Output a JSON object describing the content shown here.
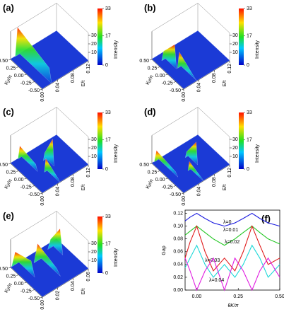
{
  "panels": [
    {
      "label": "(a)",
      "ky_label": "Ky/π",
      "e_label": "E/t",
      "z_label": "Intensity",
      "ky_ticks": [
        {
          "value": 0.5,
          "label": "0.50"
        },
        {
          "value": 0.25,
          "label": "0.25"
        },
        {
          "value": 0,
          "label": "0.00"
        },
        {
          "value": -0.25,
          "label": "-0.25"
        },
        {
          "value": -0.5,
          "label": "-0.50"
        }
      ],
      "e_ticks": [
        {
          "value": 0,
          "label": "0.00"
        },
        {
          "value": 0.04,
          "label": "0.04"
        },
        {
          "value": 0.08,
          "label": "0.08"
        },
        {
          "value": 0.12,
          "label": "0.12"
        }
      ],
      "z_ticks": [
        10,
        20,
        30
      ],
      "colorbar_ticks": [
        0,
        17,
        33
      ]
    },
    {
      "label": "(b)",
      "ky_label": "Ky/π",
      "e_label": "E/t",
      "z_label": "Intensity",
      "ky_ticks": [
        {
          "value": 0.5,
          "label": "0.50"
        },
        {
          "value": 0.25,
          "label": "0.25"
        },
        {
          "value": 0,
          "label": "0.00"
        },
        {
          "value": -0.25,
          "label": "-0.25"
        },
        {
          "value": -0.5,
          "label": "-0.50"
        }
      ],
      "e_ticks": [
        {
          "value": 0,
          "label": "0.00"
        },
        {
          "value": 0.04,
          "label": "0.04"
        },
        {
          "value": 0.08,
          "label": "0.08"
        },
        {
          "value": 0.12,
          "label": "0.12"
        }
      ],
      "z_ticks": [
        10,
        20,
        30
      ],
      "colorbar_ticks": [
        0,
        17,
        33
      ]
    },
    {
      "label": "(c)",
      "ky_label": "Ky/π",
      "e_label": "E/t",
      "z_label": "Intensity",
      "ky_ticks": [
        {
          "value": 0.5,
          "label": "0.50"
        },
        {
          "value": 0.25,
          "label": "0.25"
        },
        {
          "value": 0,
          "label": "0.00"
        },
        {
          "value": -0.25,
          "label": "-0.25"
        },
        {
          "value": -0.5,
          "label": "-0.50"
        }
      ],
      "e_ticks": [
        {
          "value": 0,
          "label": "0.00"
        },
        {
          "value": 0.04,
          "label": "0.04"
        },
        {
          "value": 0.08,
          "label": "0.08"
        },
        {
          "value": 0.12,
          "label": "0.12"
        }
      ],
      "z_ticks": [
        10,
        20,
        30
      ],
      "colorbar_ticks": [
        0,
        17,
        33
      ]
    },
    {
      "label": "(d)",
      "ky_label": "Ky/π",
      "e_label": "E/t",
      "z_label": "Intensity",
      "ky_ticks": [
        {
          "value": 0.5,
          "label": "0.50"
        },
        {
          "value": 0.25,
          "label": "0.25"
        },
        {
          "value": 0,
          "label": "0.00"
        },
        {
          "value": -0.25,
          "label": "-0.25"
        },
        {
          "value": -0.5,
          "label": "-0.50"
        }
      ],
      "e_ticks": [
        {
          "value": 0,
          "label": "0.00"
        },
        {
          "value": 0.04,
          "label": "0.04"
        },
        {
          "value": 0.08,
          "label": "0.08"
        },
        {
          "value": 0.12,
          "label": "0.12"
        }
      ],
      "z_ticks": [
        10,
        20,
        30
      ],
      "colorbar_ticks": [
        0,
        17,
        33
      ]
    },
    {
      "label": "(e)",
      "ky_label": "Ky/π",
      "e_label": "E/t",
      "z_label": "Intensity",
      "ky_ticks": [
        {
          "value": 0.5,
          "label": "0.50"
        },
        {
          "value": 0.25,
          "label": "0.25"
        },
        {
          "value": 0,
          "label": "0.00"
        },
        {
          "value": -0.25,
          "label": "-0.25"
        },
        {
          "value": -0.5,
          "label": "-0.50"
        }
      ],
      "e_ticks": [
        {
          "value": 0,
          "label": "0.00"
        },
        {
          "value": 0.02,
          "label": "0.02"
        },
        {
          "value": 0.04,
          "label": "0.04"
        },
        {
          "value": 0.06,
          "label": "0.06"
        }
      ],
      "z_ticks": [
        10,
        20,
        30
      ],
      "colorbar_ticks": [
        0,
        17,
        33
      ]
    }
  ],
  "chart_data": {
    "type": "line",
    "panel_label": "(f)",
    "x_label": "θK/π",
    "y_label": "Gap",
    "x": [
      -0.07,
      -0.04,
      0,
      0.05,
      0.1,
      0.167,
      0.23,
      0.28,
      0.333,
      0.38,
      0.43,
      0.5
    ],
    "xlim": [
      -0.07,
      0.5
    ],
    "xticks": [
      {
        "value": 0,
        "label": "0.00"
      },
      {
        "value": 0.25,
        "label": "0.25"
      },
      {
        "value": 0.5,
        "label": "0.50"
      }
    ],
    "ylim": [
      0,
      0.125
    ],
    "yticks": [
      {
        "value": 0,
        "label": "0.00"
      },
      {
        "value": 0.02,
        "label": "0.02"
      },
      {
        "value": 0.04,
        "label": "0.04"
      },
      {
        "value": 0.06,
        "label": "0.06"
      },
      {
        "value": 0.08,
        "label": "0.08"
      },
      {
        "value": 0.1,
        "label": "0.10"
      },
      {
        "value": 0.12,
        "label": "0.12"
      }
    ],
    "series": [
      {
        "name": "λ=0",
        "color": "#1c1ce0",
        "values": [
          0.108,
          0.114,
          0.12,
          0.112,
          0.105,
          0.1,
          0.105,
          0.112,
          0.12,
          0.112,
          0.105,
          0.1
        ]
      },
      {
        "name": "λ=0.01",
        "color": "#22c622",
        "values": [
          0.086,
          0.092,
          0.1,
          0.09,
          0.08,
          0.07,
          0.08,
          0.09,
          0.1,
          0.09,
          0.08,
          0.072
        ]
      },
      {
        "name": "λ=0.02",
        "color": "#e01c1c",
        "values": [
          0.05,
          0.075,
          0.1,
          0.06,
          0.03,
          0.05,
          0.03,
          0.06,
          0.1,
          0.07,
          0.04,
          0.05
        ]
      },
      {
        "name": "λ=0.03",
        "color": "#1ed8d8",
        "values": [
          0.035,
          0.05,
          0.07,
          0.04,
          0.02,
          0.04,
          0.02,
          0.04,
          0.07,
          0.05,
          0.02,
          0.04
        ]
      },
      {
        "name": "λ=0.04",
        "color": "#e01ce0",
        "values": [
          0.05,
          0.03,
          0,
          0.03,
          0.05,
          0,
          0.05,
          0.03,
          0,
          0.03,
          0.05,
          0.02
        ]
      }
    ]
  }
}
